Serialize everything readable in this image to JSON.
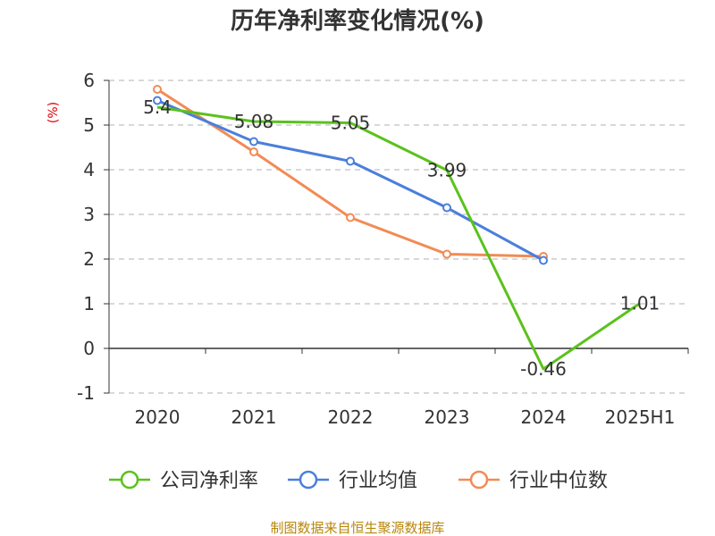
{
  "chart_data": {
    "type": "line",
    "title": "历年净利率变化情况(%)",
    "ylabel": "(%)",
    "xlabel": "",
    "categories": [
      "2020",
      "2021",
      "2022",
      "2023",
      "2024",
      "2025H1"
    ],
    "ylim": [
      -1,
      6
    ],
    "yticks": [
      "6",
      "5",
      "4",
      "3",
      "2",
      "1",
      "0",
      "-1"
    ],
    "grid": true,
    "legend_position": "bottom",
    "series": [
      {
        "name": "公司净利率",
        "color": "#5ac21c",
        "values": [
          5.4,
          5.08,
          5.05,
          3.99,
          -0.46,
          1.01
        ],
        "labels": [
          "5.4",
          "5.08",
          "5.05",
          "3.99",
          "-0.46",
          "1.01"
        ]
      },
      {
        "name": "行业均值",
        "color": "#4a7fdb",
        "values": [
          5.55,
          4.63,
          4.19,
          3.15,
          1.97,
          null
        ]
      },
      {
        "name": "行业中位数",
        "color": "#f28b55",
        "values": [
          5.8,
          4.4,
          2.93,
          2.11,
          2.06,
          null
        ]
      }
    ]
  },
  "source": "制图数据来自恒生聚源数据库"
}
